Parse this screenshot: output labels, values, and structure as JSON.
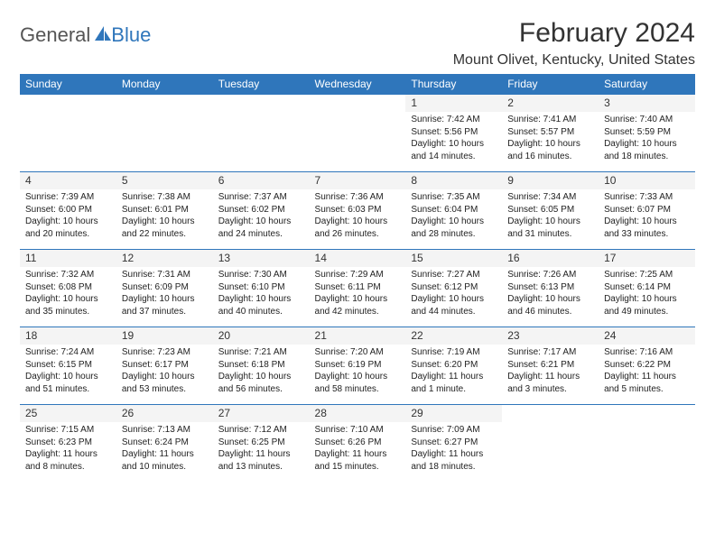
{
  "logo": {
    "general": "General",
    "blue": "Blue",
    "icon_color": "#2f76bb"
  },
  "title": "February 2024",
  "location": "Mount Olivet, Kentucky, United States",
  "colors": {
    "header_bg": "#2f76bb",
    "header_text": "#ffffff",
    "daynum_bg": "#f4f4f4",
    "border": "#2f76bb",
    "body_text": "#222222"
  },
  "typography": {
    "title_fontsize": 30,
    "location_fontsize": 16,
    "dow_fontsize": 12,
    "daynum_fontsize": 12,
    "body_fontsize": 10
  },
  "days_of_week": [
    "Sunday",
    "Monday",
    "Tuesday",
    "Wednesday",
    "Thursday",
    "Friday",
    "Saturday"
  ],
  "weeks": [
    [
      {
        "n": "",
        "sr": "",
        "ss": "",
        "dl": ""
      },
      {
        "n": "",
        "sr": "",
        "ss": "",
        "dl": ""
      },
      {
        "n": "",
        "sr": "",
        "ss": "",
        "dl": ""
      },
      {
        "n": "",
        "sr": "",
        "ss": "",
        "dl": ""
      },
      {
        "n": "1",
        "sr": "Sunrise: 7:42 AM",
        "ss": "Sunset: 5:56 PM",
        "dl": "Daylight: 10 hours and 14 minutes."
      },
      {
        "n": "2",
        "sr": "Sunrise: 7:41 AM",
        "ss": "Sunset: 5:57 PM",
        "dl": "Daylight: 10 hours and 16 minutes."
      },
      {
        "n": "3",
        "sr": "Sunrise: 7:40 AM",
        "ss": "Sunset: 5:59 PM",
        "dl": "Daylight: 10 hours and 18 minutes."
      }
    ],
    [
      {
        "n": "4",
        "sr": "Sunrise: 7:39 AM",
        "ss": "Sunset: 6:00 PM",
        "dl": "Daylight: 10 hours and 20 minutes."
      },
      {
        "n": "5",
        "sr": "Sunrise: 7:38 AM",
        "ss": "Sunset: 6:01 PM",
        "dl": "Daylight: 10 hours and 22 minutes."
      },
      {
        "n": "6",
        "sr": "Sunrise: 7:37 AM",
        "ss": "Sunset: 6:02 PM",
        "dl": "Daylight: 10 hours and 24 minutes."
      },
      {
        "n": "7",
        "sr": "Sunrise: 7:36 AM",
        "ss": "Sunset: 6:03 PM",
        "dl": "Daylight: 10 hours and 26 minutes."
      },
      {
        "n": "8",
        "sr": "Sunrise: 7:35 AM",
        "ss": "Sunset: 6:04 PM",
        "dl": "Daylight: 10 hours and 28 minutes."
      },
      {
        "n": "9",
        "sr": "Sunrise: 7:34 AM",
        "ss": "Sunset: 6:05 PM",
        "dl": "Daylight: 10 hours and 31 minutes."
      },
      {
        "n": "10",
        "sr": "Sunrise: 7:33 AM",
        "ss": "Sunset: 6:07 PM",
        "dl": "Daylight: 10 hours and 33 minutes."
      }
    ],
    [
      {
        "n": "11",
        "sr": "Sunrise: 7:32 AM",
        "ss": "Sunset: 6:08 PM",
        "dl": "Daylight: 10 hours and 35 minutes."
      },
      {
        "n": "12",
        "sr": "Sunrise: 7:31 AM",
        "ss": "Sunset: 6:09 PM",
        "dl": "Daylight: 10 hours and 37 minutes."
      },
      {
        "n": "13",
        "sr": "Sunrise: 7:30 AM",
        "ss": "Sunset: 6:10 PM",
        "dl": "Daylight: 10 hours and 40 minutes."
      },
      {
        "n": "14",
        "sr": "Sunrise: 7:29 AM",
        "ss": "Sunset: 6:11 PM",
        "dl": "Daylight: 10 hours and 42 minutes."
      },
      {
        "n": "15",
        "sr": "Sunrise: 7:27 AM",
        "ss": "Sunset: 6:12 PM",
        "dl": "Daylight: 10 hours and 44 minutes."
      },
      {
        "n": "16",
        "sr": "Sunrise: 7:26 AM",
        "ss": "Sunset: 6:13 PM",
        "dl": "Daylight: 10 hours and 46 minutes."
      },
      {
        "n": "17",
        "sr": "Sunrise: 7:25 AM",
        "ss": "Sunset: 6:14 PM",
        "dl": "Daylight: 10 hours and 49 minutes."
      }
    ],
    [
      {
        "n": "18",
        "sr": "Sunrise: 7:24 AM",
        "ss": "Sunset: 6:15 PM",
        "dl": "Daylight: 10 hours and 51 minutes."
      },
      {
        "n": "19",
        "sr": "Sunrise: 7:23 AM",
        "ss": "Sunset: 6:17 PM",
        "dl": "Daylight: 10 hours and 53 minutes."
      },
      {
        "n": "20",
        "sr": "Sunrise: 7:21 AM",
        "ss": "Sunset: 6:18 PM",
        "dl": "Daylight: 10 hours and 56 minutes."
      },
      {
        "n": "21",
        "sr": "Sunrise: 7:20 AM",
        "ss": "Sunset: 6:19 PM",
        "dl": "Daylight: 10 hours and 58 minutes."
      },
      {
        "n": "22",
        "sr": "Sunrise: 7:19 AM",
        "ss": "Sunset: 6:20 PM",
        "dl": "Daylight: 11 hours and 1 minute."
      },
      {
        "n": "23",
        "sr": "Sunrise: 7:17 AM",
        "ss": "Sunset: 6:21 PM",
        "dl": "Daylight: 11 hours and 3 minutes."
      },
      {
        "n": "24",
        "sr": "Sunrise: 7:16 AM",
        "ss": "Sunset: 6:22 PM",
        "dl": "Daylight: 11 hours and 5 minutes."
      }
    ],
    [
      {
        "n": "25",
        "sr": "Sunrise: 7:15 AM",
        "ss": "Sunset: 6:23 PM",
        "dl": "Daylight: 11 hours and 8 minutes."
      },
      {
        "n": "26",
        "sr": "Sunrise: 7:13 AM",
        "ss": "Sunset: 6:24 PM",
        "dl": "Daylight: 11 hours and 10 minutes."
      },
      {
        "n": "27",
        "sr": "Sunrise: 7:12 AM",
        "ss": "Sunset: 6:25 PM",
        "dl": "Daylight: 11 hours and 13 minutes."
      },
      {
        "n": "28",
        "sr": "Sunrise: 7:10 AM",
        "ss": "Sunset: 6:26 PM",
        "dl": "Daylight: 11 hours and 15 minutes."
      },
      {
        "n": "29",
        "sr": "Sunrise: 7:09 AM",
        "ss": "Sunset: 6:27 PM",
        "dl": "Daylight: 11 hours and 18 minutes."
      },
      {
        "n": "",
        "sr": "",
        "ss": "",
        "dl": ""
      },
      {
        "n": "",
        "sr": "",
        "ss": "",
        "dl": ""
      }
    ]
  ]
}
